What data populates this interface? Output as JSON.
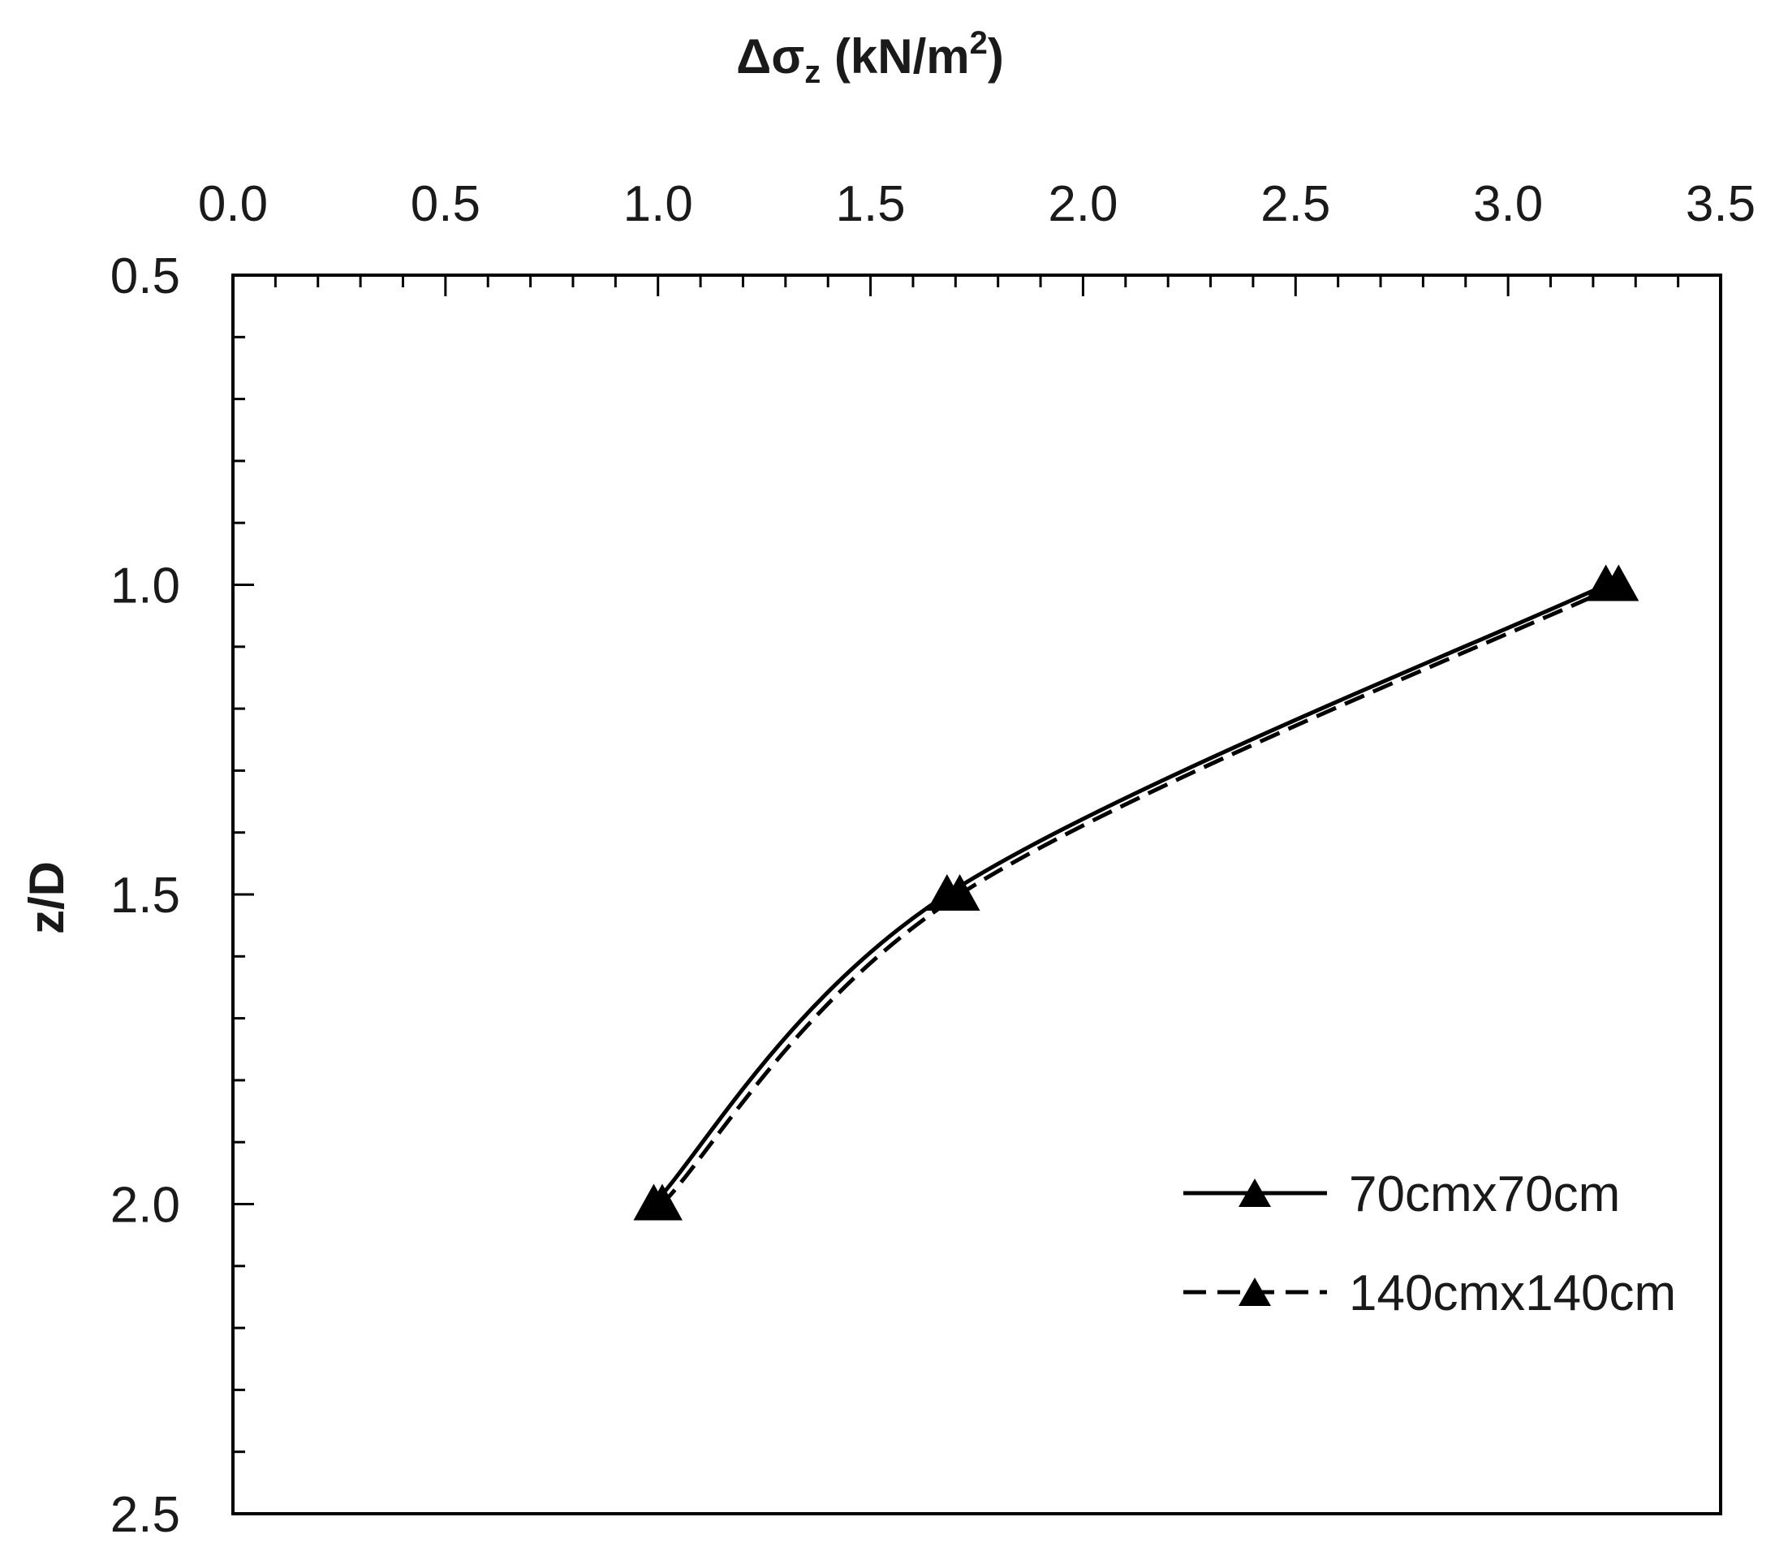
{
  "chart_data": {
    "type": "line",
    "title": "",
    "xlabel": {
      "main": "Δσ",
      "sub": "z",
      "unit_before_sup": " (kN/m",
      "sup": "2",
      "unit_after_sup": ")"
    },
    "ylabel": "z/D",
    "x_axis_position": "top",
    "y_axis_inverted": true,
    "xlim": [
      0.0,
      3.5
    ],
    "ylim": [
      0.5,
      2.5
    ],
    "x_ticks": [
      "0.0",
      "0.5",
      "1.0",
      "1.5",
      "2.0",
      "2.5",
      "3.0",
      "3.5"
    ],
    "y_ticks": [
      "0.5",
      "1.0",
      "1.5",
      "2.0",
      "2.5"
    ],
    "grid": false,
    "legend_position": "bottom-right",
    "series": [
      {
        "name": "70cmx70cm",
        "line_style": "solid",
        "marker": "triangle",
        "color": "#000000",
        "points": [
          {
            "x": 3.23,
            "y": 1.0
          },
          {
            "x": 1.68,
            "y": 1.5
          },
          {
            "x": 0.99,
            "y": 2.0
          }
        ]
      },
      {
        "name": "140cmx140cm",
        "line_style": "dashed",
        "marker": "triangle",
        "color": "#000000",
        "points": [
          {
            "x": 3.26,
            "y": 1.0
          },
          {
            "x": 1.71,
            "y": 1.5
          },
          {
            "x": 1.01,
            "y": 2.0
          }
        ]
      }
    ]
  }
}
